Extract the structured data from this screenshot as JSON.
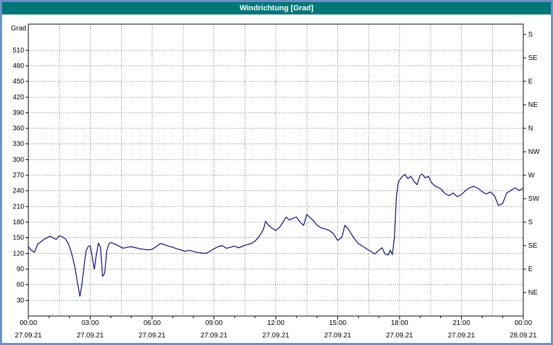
{
  "window": {
    "title": "Windrichtung [Grad]"
  },
  "colors": {
    "titlebar_bg": "#007878",
    "titlebar_text": "#ffffff",
    "frame_border": "#6b92c4",
    "plot_bg": "#ffffff",
    "grid": "#7a7a7a",
    "axis": "#000000",
    "text": "#000000",
    "line": "#00008b"
  },
  "chart_data": {
    "type": "line",
    "title": "Windrichtung [Grad]",
    "ylabel": "Grad",
    "y_range": [
      0,
      560
    ],
    "y_ticks": [
      30,
      60,
      90,
      120,
      150,
      180,
      210,
      240,
      270,
      300,
      330,
      360,
      390,
      420,
      450,
      480,
      510
    ],
    "y_grid_interval": 30,
    "x_range_hours": [
      0,
      24
    ],
    "x_grid_interval_hours": 1.5,
    "x_minor_tick_hours": 1,
    "x_ticks": [
      {
        "hour": 0,
        "time": "00:00",
        "date": "27.09.21"
      },
      {
        "hour": 3,
        "time": "03:00",
        "date": "27.09.21"
      },
      {
        "hour": 6,
        "time": "06:00",
        "date": "27.09.21"
      },
      {
        "hour": 9,
        "time": "09:00",
        "date": "27.09.21"
      },
      {
        "hour": 12,
        "time": "12:00",
        "date": "27.09.21"
      },
      {
        "hour": 15,
        "time": "15:00",
        "date": "27.09.21"
      },
      {
        "hour": 18,
        "time": "18:00",
        "date": "27.09.21"
      },
      {
        "hour": 21,
        "time": "21:00",
        "date": "27.09.21"
      },
      {
        "hour": 24,
        "time": "00:00",
        "date": "28.09.21"
      }
    ],
    "compass_labels": [
      {
        "deg": 45,
        "label": "NE"
      },
      {
        "deg": 90,
        "label": "E"
      },
      {
        "deg": 135,
        "label": "SE"
      },
      {
        "deg": 180,
        "label": "S"
      },
      {
        "deg": 225,
        "label": "SW"
      },
      {
        "deg": 270,
        "label": "W"
      },
      {
        "deg": 315,
        "label": "NW"
      },
      {
        "deg": 360,
        "label": "N"
      },
      {
        "deg": 405,
        "label": "NE"
      },
      {
        "deg": 450,
        "label": "E"
      },
      {
        "deg": 495,
        "label": "SE"
      },
      {
        "deg": 540,
        "label": "S"
      }
    ],
    "series": [
      {
        "name": "Windrichtung",
        "color": "#00008b",
        "points": [
          [
            0,
            133
          ],
          [
            0.15,
            126
          ],
          [
            0.3,
            122
          ],
          [
            0.45,
            138
          ],
          [
            0.6,
            142
          ],
          [
            0.75,
            147
          ],
          [
            0.9,
            150
          ],
          [
            1.05,
            153
          ],
          [
            1.2,
            150
          ],
          [
            1.35,
            147
          ],
          [
            1.5,
            154
          ],
          [
            1.65,
            152
          ],
          [
            1.8,
            148
          ],
          [
            1.95,
            138
          ],
          [
            2.1,
            120
          ],
          [
            2.25,
            95
          ],
          [
            2.4,
            60
          ],
          [
            2.5,
            38
          ],
          [
            2.6,
            62
          ],
          [
            2.7,
            95
          ],
          [
            2.8,
            125
          ],
          [
            2.9,
            133
          ],
          [
            3.0,
            135
          ],
          [
            3.1,
            112
          ],
          [
            3.2,
            90
          ],
          [
            3.3,
            118
          ],
          [
            3.4,
            140
          ],
          [
            3.5,
            132
          ],
          [
            3.6,
            76
          ],
          [
            3.7,
            82
          ],
          [
            3.8,
            125
          ],
          [
            3.9,
            138
          ],
          [
            4.0,
            141
          ],
          [
            4.2,
            138
          ],
          [
            4.4,
            134
          ],
          [
            4.6,
            130
          ],
          [
            4.8,
            132
          ],
          [
            5.0,
            133
          ],
          [
            5.2,
            131
          ],
          [
            5.4,
            129
          ],
          [
            5.6,
            128
          ],
          [
            5.8,
            127
          ],
          [
            6.0,
            128
          ],
          [
            6.2,
            133
          ],
          [
            6.4,
            139
          ],
          [
            6.6,
            137
          ],
          [
            6.8,
            134
          ],
          [
            7.0,
            132
          ],
          [
            7.2,
            129
          ],
          [
            7.4,
            127
          ],
          [
            7.6,
            124
          ],
          [
            7.8,
            126
          ],
          [
            8.0,
            124
          ],
          [
            8.2,
            122
          ],
          [
            8.4,
            121
          ],
          [
            8.6,
            120
          ],
          [
            8.8,
            124
          ],
          [
            9.0,
            129
          ],
          [
            9.2,
            133
          ],
          [
            9.4,
            135
          ],
          [
            9.6,
            130
          ],
          [
            9.8,
            132
          ],
          [
            10.0,
            134
          ],
          [
            10.2,
            131
          ],
          [
            10.4,
            134
          ],
          [
            10.6,
            137
          ],
          [
            10.8,
            139
          ],
          [
            11.0,
            144
          ],
          [
            11.2,
            153
          ],
          [
            11.4,
            166
          ],
          [
            11.5,
            182
          ],
          [
            11.65,
            174
          ],
          [
            11.8,
            169
          ],
          [
            12.0,
            164
          ],
          [
            12.2,
            171
          ],
          [
            12.35,
            180
          ],
          [
            12.5,
            190
          ],
          [
            12.65,
            184
          ],
          [
            12.8,
            187
          ],
          [
            13.0,
            190
          ],
          [
            13.2,
            179
          ],
          [
            13.35,
            174
          ],
          [
            13.5,
            195
          ],
          [
            13.65,
            189
          ],
          [
            13.8,
            184
          ],
          [
            14.0,
            174
          ],
          [
            14.2,
            169
          ],
          [
            14.4,
            167
          ],
          [
            14.6,
            164
          ],
          [
            14.8,
            158
          ],
          [
            15.0,
            145
          ],
          [
            15.2,
            151
          ],
          [
            15.35,
            174
          ],
          [
            15.5,
            168
          ],
          [
            15.65,
            158
          ],
          [
            15.8,
            149
          ],
          [
            16.0,
            139
          ],
          [
            16.2,
            134
          ],
          [
            16.4,
            129
          ],
          [
            16.6,
            124
          ],
          [
            16.8,
            119
          ],
          [
            17.0,
            126
          ],
          [
            17.15,
            131
          ],
          [
            17.3,
            119
          ],
          [
            17.45,
            117
          ],
          [
            17.55,
            126
          ],
          [
            17.65,
            118
          ],
          [
            17.75,
            150
          ],
          [
            17.85,
            230
          ],
          [
            17.95,
            258
          ],
          [
            18.1,
            266
          ],
          [
            18.25,
            272
          ],
          [
            18.4,
            264
          ],
          [
            18.55,
            268
          ],
          [
            18.7,
            258
          ],
          [
            18.85,
            252
          ],
          [
            19.0,
            270
          ],
          [
            19.1,
            272
          ],
          [
            19.25,
            265
          ],
          [
            19.4,
            268
          ],
          [
            19.55,
            256
          ],
          [
            19.7,
            250
          ],
          [
            19.85,
            247
          ],
          [
            20.0,
            244
          ],
          [
            20.2,
            235
          ],
          [
            20.4,
            231
          ],
          [
            20.6,
            236
          ],
          [
            20.8,
            229
          ],
          [
            21.0,
            233
          ],
          [
            21.2,
            241
          ],
          [
            21.4,
            246
          ],
          [
            21.6,
            249
          ],
          [
            21.8,
            245
          ],
          [
            22.0,
            239
          ],
          [
            22.2,
            234
          ],
          [
            22.4,
            238
          ],
          [
            22.6,
            231
          ],
          [
            22.8,
            212
          ],
          [
            23.0,
            216
          ],
          [
            23.2,
            236
          ],
          [
            23.4,
            241
          ],
          [
            23.6,
            246
          ],
          [
            23.8,
            241
          ],
          [
            24.0,
            245
          ]
        ]
      }
    ]
  }
}
